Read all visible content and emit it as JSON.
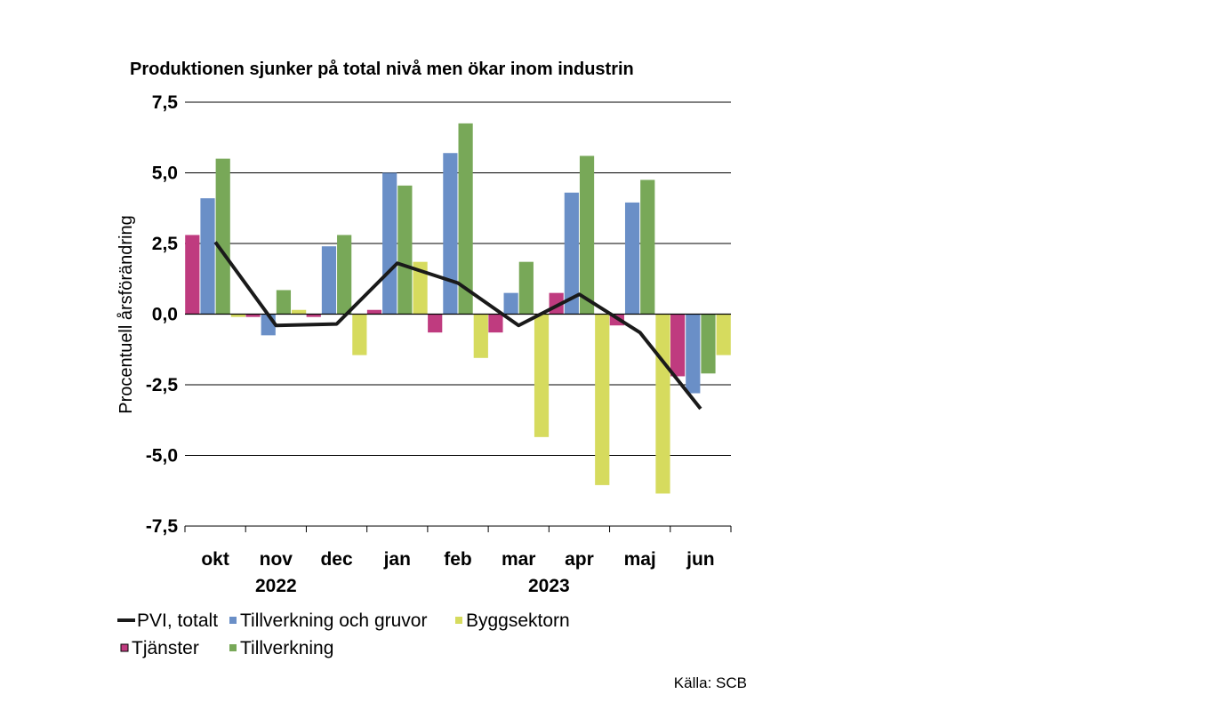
{
  "chart_data": {
    "type": "bar",
    "title": "Produktionen sjunker på total nivå men ökar inom industrin",
    "ylabel": "Procentuell årsförändring",
    "xlabel": "",
    "ylim": [
      -7.5,
      7.5
    ],
    "yticks": [
      7.5,
      5.0,
      2.5,
      0.0,
      -2.5,
      -5.0,
      -7.5
    ],
    "ytick_labels": [
      "7,5",
      "5,0",
      "2,5",
      "0,0",
      "-2,5",
      "-5,0",
      "-7,5"
    ],
    "categories": [
      "okt",
      "nov",
      "dec",
      "jan",
      "feb",
      "mar",
      "apr",
      "maj",
      "jun"
    ],
    "year_labels": [
      {
        "label": "2022",
        "category_index": 1
      },
      {
        "label": "2023",
        "category_index": 5.5
      }
    ],
    "grid": true,
    "legend_position": "bottom",
    "bar_series": [
      {
        "name": "Tjänster",
        "color": "#bf3b7f",
        "values": [
          2.8,
          -0.1,
          -0.1,
          0.15,
          -0.65,
          -0.65,
          0.75,
          -0.4,
          -2.2
        ]
      },
      {
        "name": "Tillverkning och gruvor",
        "color": "#6a8fc7",
        "values": [
          4.1,
          -0.75,
          2.4,
          5.0,
          5.7,
          0.75,
          4.3,
          3.95,
          -2.8
        ]
      },
      {
        "name": "Tillverkning",
        "color": "#78a858",
        "values": [
          5.5,
          0.85,
          2.8,
          4.55,
          6.75,
          1.85,
          5.6,
          4.75,
          -2.1
        ]
      },
      {
        "name": "Byggsektorn",
        "color": "#d6db5e",
        "values": [
          -0.1,
          0.15,
          -1.45,
          1.85,
          -1.55,
          -4.35,
          -6.05,
          -6.35,
          -1.45
        ]
      }
    ],
    "line_series": [
      {
        "name": "PVI, totalt",
        "color": "#1a1a1a",
        "values": [
          2.55,
          -0.4,
          -0.35,
          1.8,
          1.1,
          -0.4,
          0.7,
          -0.65,
          -3.35
        ]
      }
    ],
    "legend_order": [
      "PVI, totalt",
      "Tillverkning och gruvor",
      "Byggsektorn",
      "Tjänster",
      "Tillverkning"
    ]
  },
  "source": "Källa: SCB"
}
